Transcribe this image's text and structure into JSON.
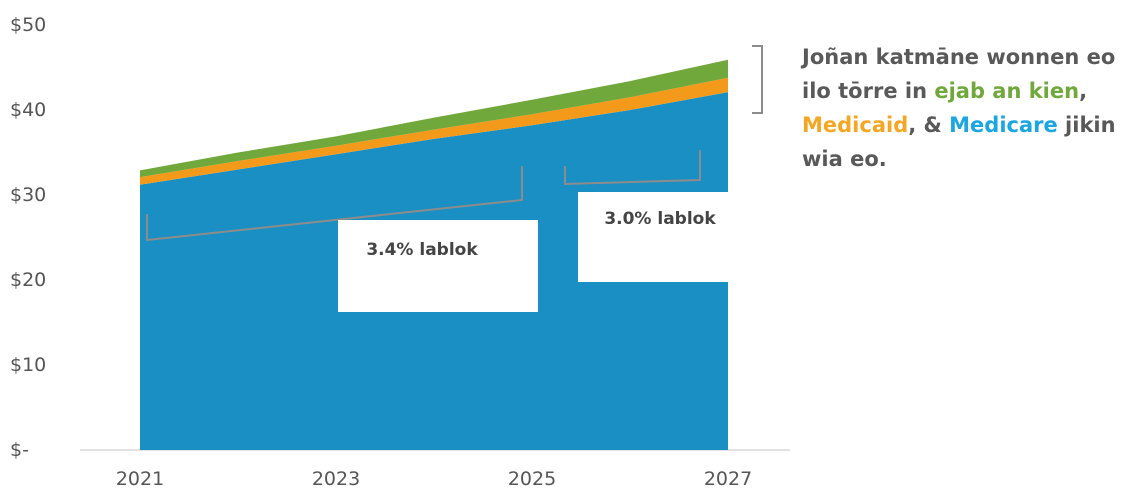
{
  "chart_data": {
    "type": "area",
    "stacked": true,
    "x": [
      2021,
      2022,
      2023,
      2024,
      2025,
      2026,
      2027
    ],
    "series": [
      {
        "name": "Medicare",
        "color": "#1a8fc4",
        "values": [
          31.2,
          33.0,
          34.8,
          36.6,
          38.2,
          40.0,
          42.1
        ]
      },
      {
        "name": "Medicaid",
        "color": "#f39a1b",
        "values": [
          0.9,
          1.0,
          1.0,
          1.1,
          1.3,
          1.5,
          1.7
        ]
      },
      {
        "name": "ejab an kien",
        "color": "#70a83b",
        "values": [
          0.8,
          1.0,
          1.1,
          1.4,
          1.7,
          1.9,
          2.1
        ]
      }
    ],
    "y_ticks": [
      "$-",
      "$10",
      "$20",
      "$30",
      "$40",
      "$50"
    ],
    "x_ticks": [
      "2021",
      "2023",
      "2025",
      "2027"
    ],
    "ylim": [
      0,
      50
    ],
    "xlim": [
      2021,
      2027
    ],
    "grid": false,
    "annotations": [
      {
        "label": "3.4% lablok",
        "from": 2021,
        "to": 2025
      },
      {
        "label": "3.0% lablok",
        "from": 2025,
        "to": 2027
      }
    ]
  },
  "callout": {
    "part1": "Joñan katmāne wonnen eo ilo tōrre in ",
    "ejab": "ejab an kien",
    "sep1": ", ",
    "medicaid": "Medicaid",
    "sep2": ", & ",
    "medicare": "Medicare",
    "part2": " jikin wia eo.",
    "colors": {
      "text": "#595959",
      "ejab": "#70a83b",
      "medicaid": "#f5a623",
      "medicare": "#1aa6e0"
    }
  }
}
